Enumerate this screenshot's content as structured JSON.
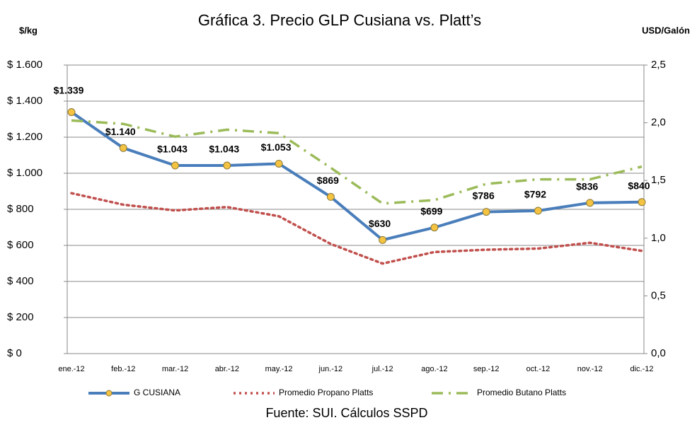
{
  "chart_data": {
    "type": "line",
    "title": "Gráfica 3. Precio GLP Cusiana vs. Platt’s",
    "y_label": "$/kg",
    "y2_label": "USD/Galón",
    "source": "Fuente: SUI. Cálculos SSPD",
    "categories": [
      "ene.-12",
      "feb.-12",
      "mar.-12",
      "abr.-12",
      "may.-12",
      "jun.-12",
      "jul.-12",
      "ago.-12",
      "sep.-12",
      "oct.-12",
      "nov.-12",
      "dic.-12"
    ],
    "series": [
      {
        "name": "G CUSIANA",
        "color": "#4a7ebb",
        "dash": "solid",
        "marker": true,
        "values": [
          1339,
          1140,
          1043,
          1043,
          1053,
          869,
          630,
          699,
          786,
          792,
          836,
          840
        ],
        "value_labels": [
          "$1.339",
          "$1.140",
          "$1.043",
          "$1.043",
          "$1.053",
          "$869",
          "$630",
          "$699",
          "$786",
          "$792",
          "$836",
          "$840"
        ]
      },
      {
        "name": "Promedio Propano Platts",
        "color": "#c0504d",
        "dash": "dotted",
        "axis": "y2",
        "values": [
          1.39,
          1.29,
          1.24,
          1.27,
          1.19,
          0.95,
          0.78,
          0.88,
          0.9,
          0.91,
          0.96,
          0.89
        ]
      },
      {
        "name": "Promedio Butano Platts",
        "color": "#9bbb59",
        "dash": "dashdot",
        "axis": "y2",
        "values": [
          2.02,
          1.99,
          1.88,
          1.94,
          1.91,
          1.61,
          1.3,
          1.33,
          1.47,
          1.51,
          1.51,
          1.62
        ]
      }
    ],
    "ylim": [
      0,
      1600
    ],
    "yticks": [
      {
        "value": 0,
        "label": "$ 0"
      },
      {
        "value": 200,
        "label": "$ 200"
      },
      {
        "value": 400,
        "label": "$ 400"
      },
      {
        "value": 600,
        "label": "$ 600"
      },
      {
        "value": 800,
        "label": "$ 800"
      },
      {
        "value": 1000,
        "label": "$ 1.000"
      },
      {
        "value": 1200,
        "label": "$ 1.200"
      },
      {
        "value": 1400,
        "label": "$ 1.400"
      },
      {
        "value": 1600,
        "label": "$ 1.600"
      }
    ],
    "y2lim": [
      0,
      2.5
    ],
    "y2ticks": [
      {
        "value": 0,
        "label": "0,0"
      },
      {
        "value": 0.5,
        "label": "0,5"
      },
      {
        "value": 1,
        "label": "1,0"
      },
      {
        "value": 1.5,
        "label": "1,5"
      },
      {
        "value": 2,
        "label": "2,0"
      },
      {
        "value": 2.5,
        "label": "2,5"
      }
    ],
    "grid": true,
    "legend": "bottom"
  }
}
